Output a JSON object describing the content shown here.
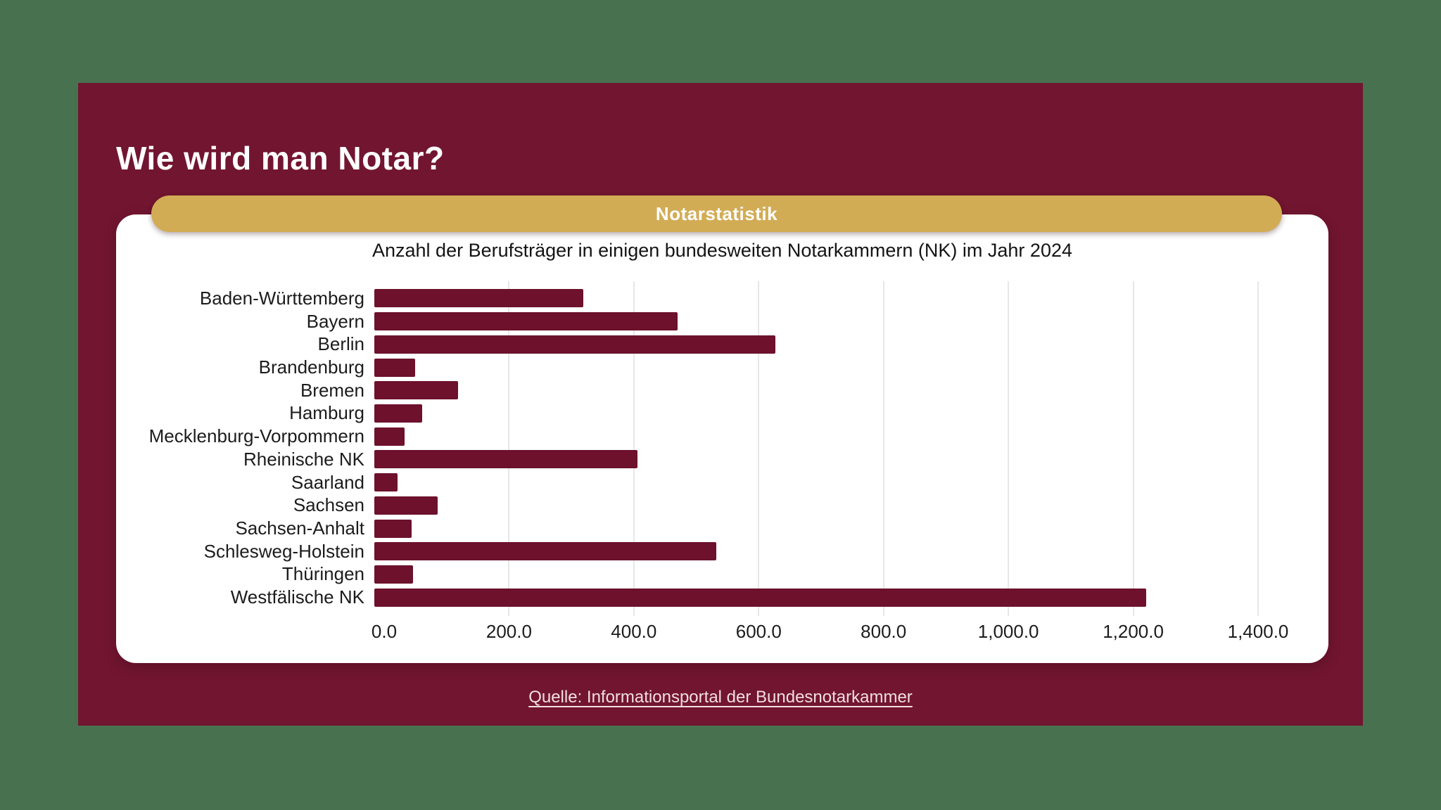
{
  "page": {
    "background_color": "#487150"
  },
  "slide": {
    "background_color": "#721530",
    "title": "Wie wird man Notar?",
    "title_color": "#FFFFFF"
  },
  "badge": {
    "label": "Notarstatistik",
    "background_color": "#D2AC55",
    "text_color": "#FFFFFF"
  },
  "chart_data": {
    "type": "bar",
    "orientation": "horizontal",
    "title": "Anzahl der Berufsträger in einigen bundesweiten Notarkammern (NK) im Jahr 2024",
    "categories": [
      "Baden-Württemberg",
      "Bayern",
      "Berlin",
      "Brandenburg",
      "Bremen",
      "Hamburg",
      "Mecklenburg-Vorpommern",
      "Rheinische NK",
      "Saarland",
      "Sachsen",
      "Sachsen-Anhalt",
      "Schlesweg-Holstein",
      "Thüringen",
      "Westfälische NK"
    ],
    "values": [
      335,
      486,
      642,
      65,
      134,
      77,
      48,
      422,
      37,
      101,
      60,
      548,
      62,
      1237
    ],
    "xlabel": "",
    "ylabel": "",
    "xlim": [
      0,
      1400
    ],
    "x_ticks": [
      0,
      200,
      400,
      600,
      800,
      1000,
      1200,
      1400
    ],
    "x_tick_labels": [
      "0.0",
      "200.0",
      "400.0",
      "600.0",
      "800.0",
      "1,000.0",
      "1,200.0",
      "1,400.0"
    ],
    "grid": true,
    "gridline_color": "#E7E7E5",
    "bar_color": "#6D112D",
    "legend": "none",
    "card_background": "#FFFFFF"
  },
  "footer": {
    "source_label": "Quelle: Informationsportal der Bundesnotarkammer",
    "text_color": "#F2DEE3"
  }
}
